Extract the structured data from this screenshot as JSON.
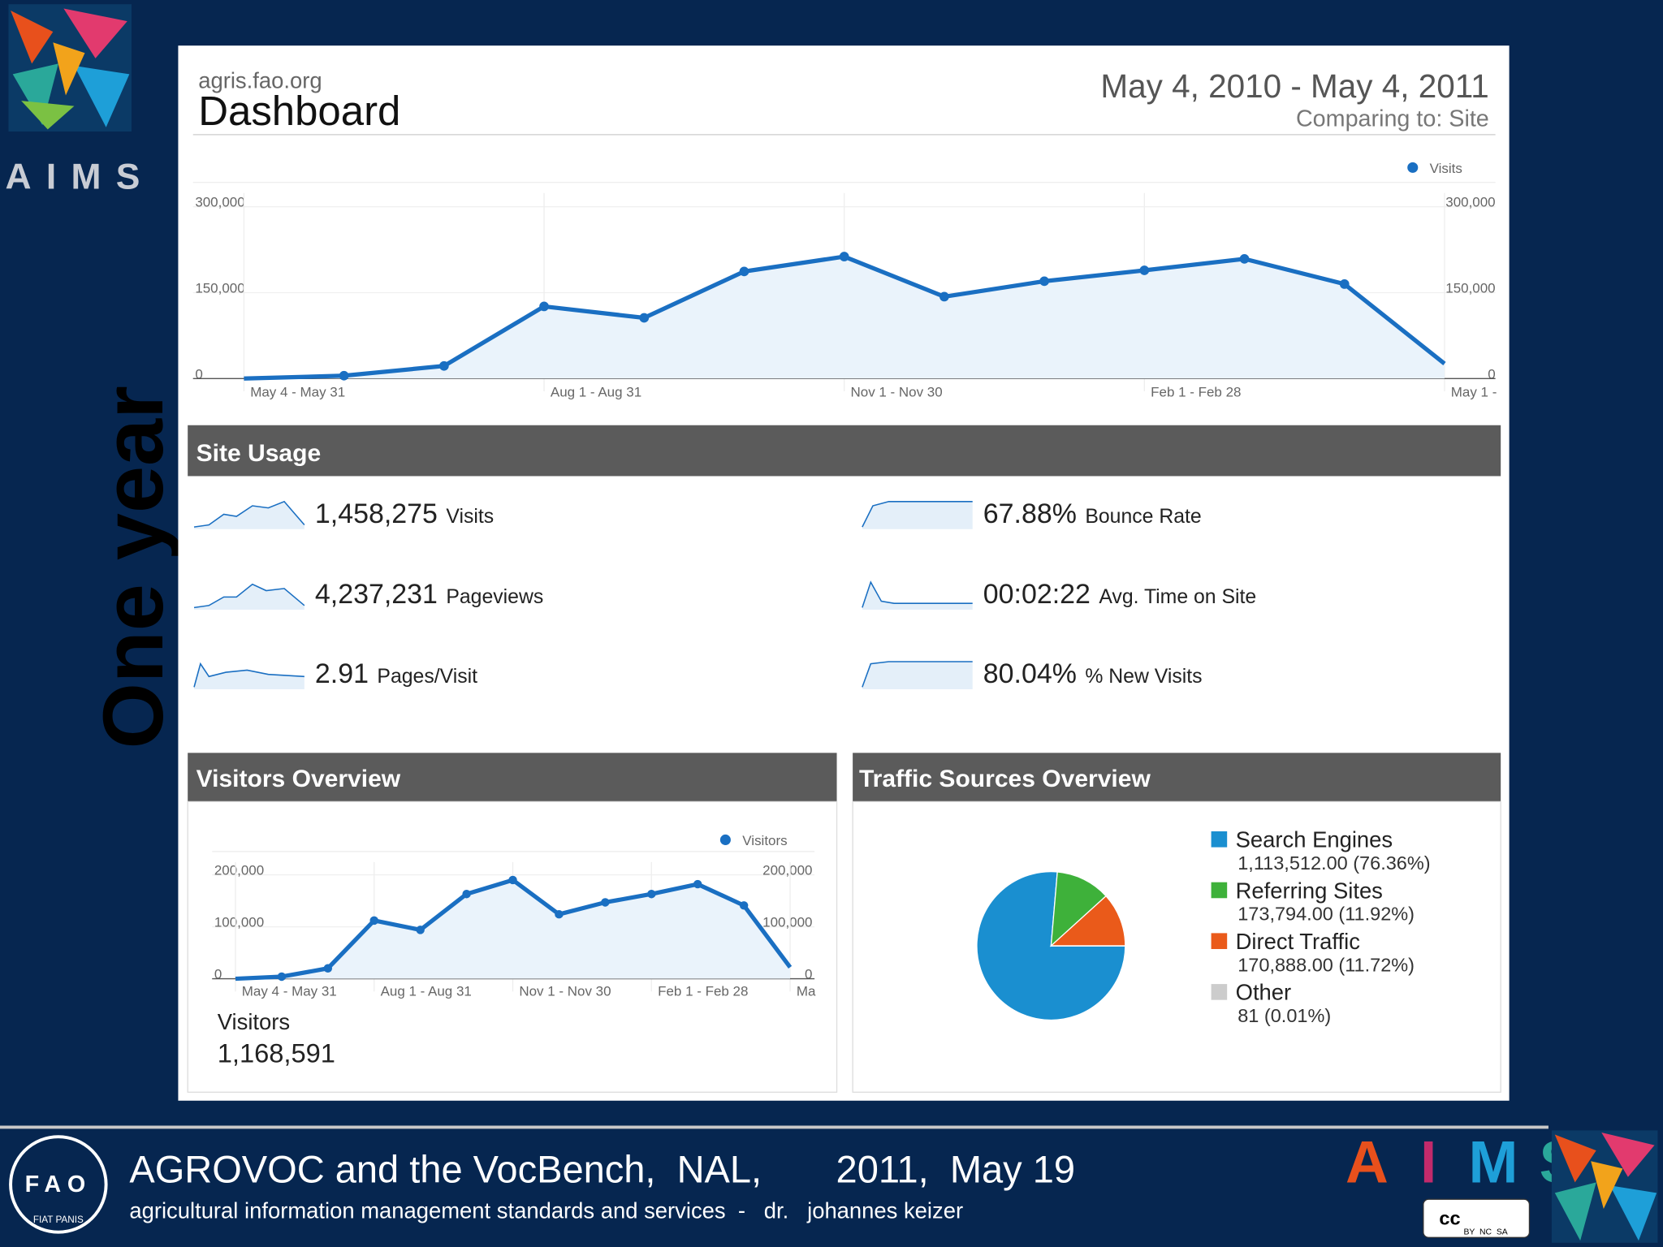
{
  "side": {
    "aims": "AIMS",
    "period": "One year"
  },
  "header": {
    "site": "agris.fao.org",
    "title": "Dashboard",
    "date_range": "May 4, 2010 - May 4, 2011",
    "comparing": "Comparing to: Site"
  },
  "site_usage": {
    "title": "Site Usage",
    "metrics": [
      {
        "value": "1,458,275",
        "label": "Visits"
      },
      {
        "value": "4,237,231",
        "label": "Pageviews"
      },
      {
        "value": "2.91",
        "label": "Pages/Visit"
      },
      {
        "value": "67.88%",
        "label": "Bounce Rate"
      },
      {
        "value": "00:02:22",
        "label": "Avg. Time on Site"
      },
      {
        "value": "80.04%",
        "label": "% New Visits"
      }
    ]
  },
  "visitors_summary": {
    "label": "Visitors",
    "value": "1,168,591"
  },
  "chart_data": [
    {
      "type": "line",
      "categories": [
        "May 4 - May 31",
        null,
        null,
        "Aug 1 - Aug 31",
        null,
        null,
        "Nov 1 - Nov 30",
        null,
        null,
        "Feb 1 - Feb 28",
        null,
        null,
        "May 1 -"
      ],
      "series": [
        {
          "name": "Visits",
          "color": "#1a6fc2",
          "values": [
            0,
            5000,
            22000,
            126000,
            106000,
            187000,
            213000,
            143000,
            170000,
            189000,
            209000,
            165000,
            26000
          ]
        }
      ],
      "ylim": [
        0,
        300000
      ],
      "yticks": [
        0,
        {
          "value": 150000,
          "label": "150,000"
        },
        {
          "value": 300000,
          "label": "300,000"
        }
      ],
      "grid": true
    },
    {
      "type": "line",
      "title": "Visitors Overview",
      "categories": [
        "May 4 - May 31",
        null,
        null,
        "Aug 1 - Aug 31",
        null,
        null,
        "Nov 1 - Nov 30",
        null,
        null,
        "Feb 1 - Feb 28",
        null,
        null,
        "Ma"
      ],
      "series": [
        {
          "name": "Visitors",
          "color": "#1a6fc2",
          "values": [
            0,
            4000,
            20000,
            112000,
            94000,
            163000,
            190000,
            124000,
            147000,
            163000,
            182000,
            141000,
            22000
          ]
        }
      ],
      "ylim": [
        0,
        200000
      ],
      "yticks": [
        0,
        {
          "value": 100000,
          "label": "100,000"
        },
        {
          "value": 200000,
          "label": "200,000"
        }
      ],
      "grid": true
    },
    {
      "type": "pie",
      "title": "Traffic Sources Overview",
      "categories": [
        "Search Engines",
        "Referring Sites",
        "Direct Traffic",
        "Other"
      ],
      "values": [
        1113512,
        173794,
        170888,
        81
      ],
      "value_labels": [
        "1,113,512.00 (76.36%)",
        "173,794.00 (11.92%)",
        "170,888.00 (11.72%)",
        "81 (0.01%)"
      ],
      "colors": [
        "#1a8fd0",
        "#3eb13a",
        "#ea5a1a",
        "#cccccc"
      ]
    }
  ],
  "footer": {
    "title": "AGROVOC and the VocBench,  NAL,       2011,  May 19",
    "subtitle": "agricultural information management standards and services  -   dr.   johannes keizer",
    "aims_letters": [
      "A",
      "I",
      "M",
      "S"
    ],
    "fao": "FAO",
    "fao_motto": "FIAT PANIS",
    "cc": "cc",
    "cc_terms": "BY  NC  SA"
  }
}
